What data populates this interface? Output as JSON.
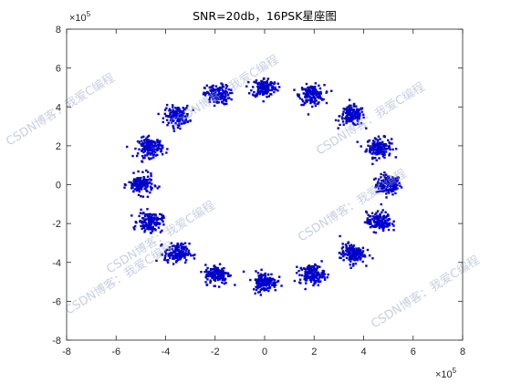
{
  "chart_data": {
    "type": "scatter",
    "title": "SNR=20db，16PSK星座图",
    "xlabel": "",
    "ylabel": "",
    "xlim": [
      -800000,
      800000
    ],
    "ylim": [
      -800000,
      800000
    ],
    "x_ticks": [
      -8,
      -6,
      -4,
      -2,
      0,
      2,
      4,
      6,
      8
    ],
    "y_ticks": [
      -8,
      -6,
      -4,
      -2,
      0,
      2,
      4,
      6,
      8
    ],
    "x_exponent": {
      "base": "×10",
      "power": "5"
    },
    "y_exponent": {
      "base": "×10",
      "power": "5"
    },
    "grid": false,
    "marker_color": "#0000cc",
    "series": [
      {
        "points_per_cluster": 150,
        "spread": 25000,
        "cluster_centers": [
          [
            500000,
            0
          ],
          [
            462000,
            191000
          ],
          [
            354000,
            354000
          ],
          [
            191000,
            462000
          ],
          [
            0,
            500000
          ],
          [
            -191000,
            462000
          ],
          [
            -354000,
            354000
          ],
          [
            -462000,
            191000
          ],
          [
            -500000,
            0
          ],
          [
            -462000,
            -191000
          ],
          [
            -354000,
            -354000
          ],
          [
            -191000,
            -462000
          ],
          [
            0,
            -500000
          ],
          [
            191000,
            -462000
          ],
          [
            354000,
            -354000
          ],
          [
            462000,
            -191000
          ]
        ]
      }
    ]
  },
  "watermark": "CSDN博客：我爱C编程"
}
